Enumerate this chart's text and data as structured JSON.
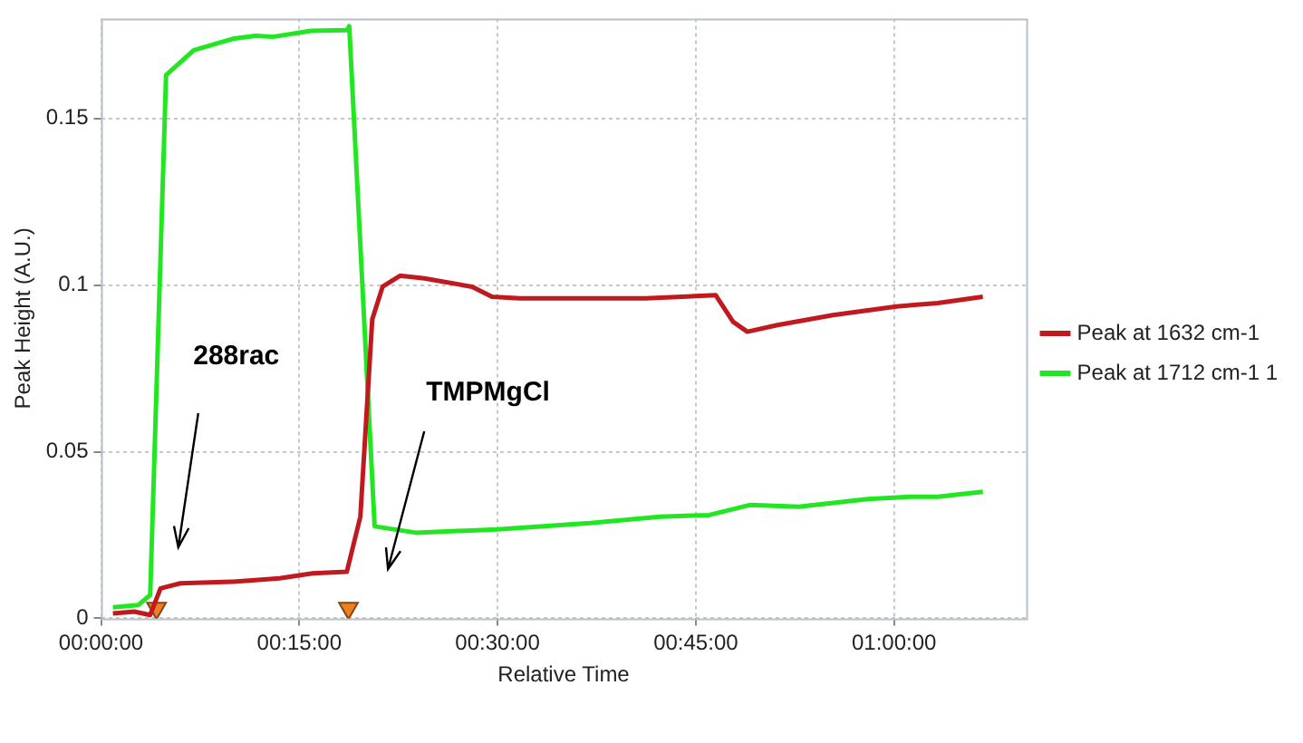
{
  "chart_data": {
    "type": "line",
    "xlabel": "Relative Time",
    "ylabel": "Peak Height (A.U.)",
    "xlim": [
      0,
      1.1667
    ],
    "xticks": [
      {
        "value": 0,
        "label": "00:00:00"
      },
      {
        "value": 0.25,
        "label": "00:15:00"
      },
      {
        "value": 0.5,
        "label": "00:30:00"
      },
      {
        "value": 0.75,
        "label": "00:45:00"
      },
      {
        "value": 1,
        "label": "01:00:00"
      }
    ],
    "ylim": [
      0,
      0.18
    ],
    "yticks": [
      0,
      0.05,
      0.1,
      0.15
    ],
    "grid": true,
    "legend": "right",
    "marker": "none",
    "line_style": "solid",
    "series": [
      {
        "name": "Peak at 1632 cm-1",
        "color": "#c0191e",
        "x": [
          0.015,
          0.042,
          0.062,
          0.075,
          0.1,
          0.167,
          0.225,
          0.267,
          0.31,
          0.327,
          0.342,
          0.355,
          0.377,
          0.408,
          0.468,
          0.493,
          0.528,
          0.687,
          0.775,
          0.797,
          0.815,
          0.853,
          0.923,
          1.003,
          1.055,
          1.112
        ],
        "values": [
          0.0015,
          0.002,
          0.001,
          0.009,
          0.0105,
          0.011,
          0.012,
          0.0135,
          0.014,
          0.0305,
          0.0897,
          0.0995,
          0.1028,
          0.102,
          0.0995,
          0.0965,
          0.096,
          0.096,
          0.097,
          0.089,
          0.086,
          0.088,
          0.091,
          0.0936,
          0.0946,
          0.0965
        ]
      },
      {
        "name": "Peak at 1712 cm-1 1",
        "color": "#22e622",
        "x": [
          0.015,
          0.047,
          0.062,
          0.082,
          0.117,
          0.168,
          0.195,
          0.217,
          0.265,
          0.31,
          0.313,
          0.345,
          0.397,
          0.5,
          0.617,
          0.705,
          0.767,
          0.818,
          0.88,
          0.967,
          1.02,
          1.055,
          1.112
        ],
        "values": [
          0.0033,
          0.004,
          0.007,
          0.163,
          0.1705,
          0.174,
          0.1748,
          0.1745,
          0.1763,
          0.1765,
          0.1777,
          0.0276,
          0.0257,
          0.0267,
          0.0286,
          0.0305,
          0.031,
          0.034,
          0.0335,
          0.0358,
          0.0365,
          0.0365,
          0.038
        ]
      },
      {
        "type": "scatter",
        "color": "#f07f20",
        "marker": "triangle",
        "x": [
          0.07,
          0.312
        ],
        "values": [
          0.003,
          0.003
        ]
      }
    ],
    "annotations": [
      "288rac",
      "TMPMgCl"
    ]
  }
}
